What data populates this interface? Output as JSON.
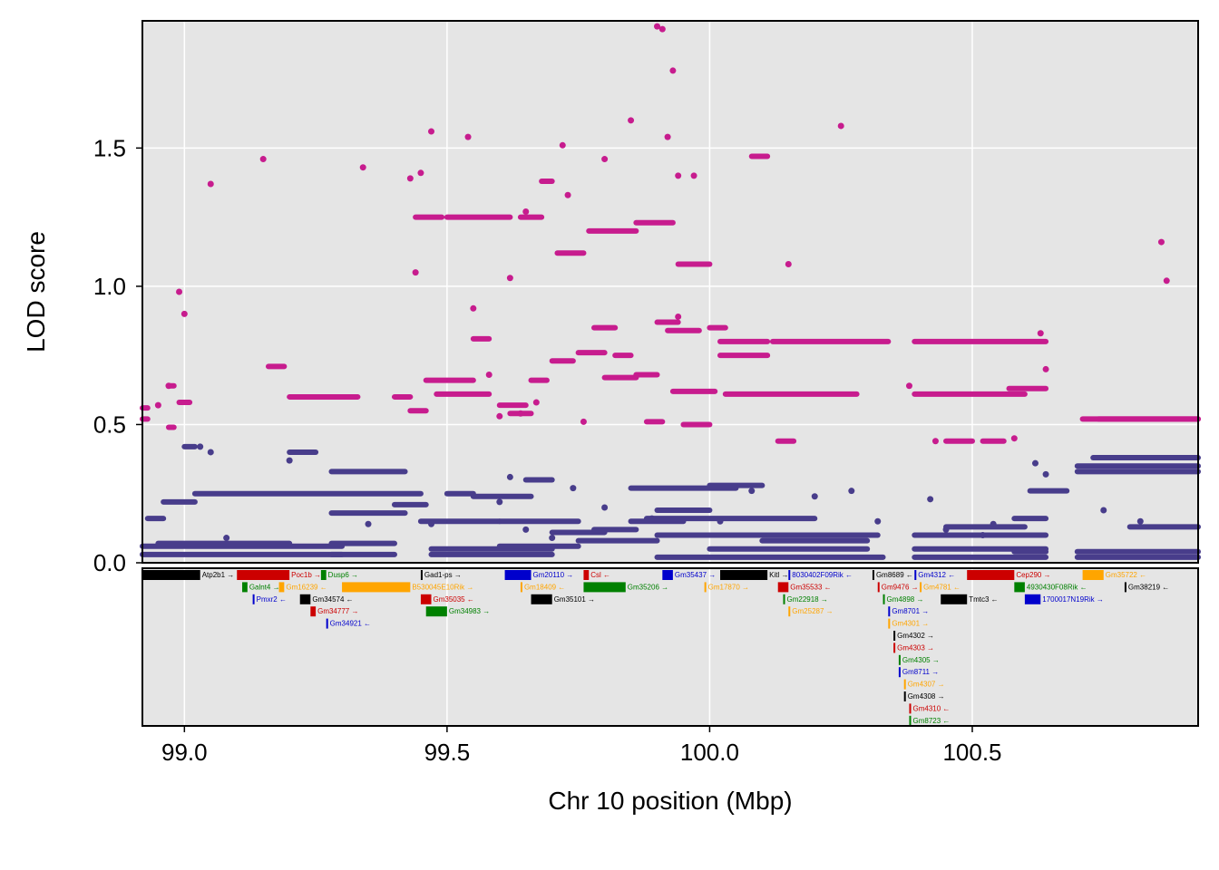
{
  "chart_data": {
    "type": "scatter",
    "xlabel": "Chr 10 position (Mbp)",
    "ylabel": "LOD score",
    "xlim": [
      98.92,
      100.93
    ],
    "ylim": [
      0.0,
      1.96
    ],
    "x_ticks": [
      99.0,
      99.5,
      100.0,
      100.5
    ],
    "x_tick_labels": [
      "99.0",
      "99.5",
      "100.0",
      "100.5"
    ],
    "y_ticks": [
      0.0,
      0.5,
      1.0,
      1.5
    ],
    "y_tick_labels": [
      "0.0",
      "0.5",
      "1.0",
      "1.5"
    ],
    "grid": true,
    "background": "#e5e5e5",
    "series": [
      {
        "color": "#c71c8e",
        "segments": [
          [
            98.92,
            98.93,
            0.56
          ],
          [
            98.92,
            98.93,
            0.52
          ],
          [
            98.97,
            98.98,
            0.64
          ],
          [
            98.97,
            98.98,
            0.49
          ],
          [
            98.99,
            99.01,
            0.58
          ],
          [
            99.16,
            99.19,
            0.71
          ],
          [
            99.2,
            99.33,
            0.6
          ],
          [
            99.4,
            99.43,
            0.6
          ],
          [
            99.43,
            99.46,
            0.55
          ],
          [
            99.44,
            99.49,
            1.25
          ],
          [
            99.46,
            99.55,
            0.66
          ],
          [
            99.48,
            99.58,
            0.61
          ],
          [
            99.5,
            99.62,
            1.25
          ],
          [
            99.55,
            99.58,
            0.81
          ],
          [
            99.6,
            99.65,
            0.57
          ],
          [
            99.62,
            99.66,
            0.54
          ],
          [
            99.64,
            99.68,
            1.25
          ],
          [
            99.66,
            99.69,
            0.66
          ],
          [
            99.68,
            99.7,
            1.38
          ],
          [
            99.7,
            99.74,
            0.73
          ],
          [
            99.71,
            99.76,
            1.12
          ],
          [
            99.75,
            99.8,
            0.76
          ],
          [
            99.77,
            99.86,
            1.2
          ],
          [
            99.78,
            99.82,
            0.85
          ],
          [
            99.8,
            99.86,
            0.67
          ],
          [
            99.82,
            99.85,
            0.75
          ],
          [
            99.86,
            99.9,
            0.68
          ],
          [
            99.86,
            99.93,
            1.23
          ],
          [
            99.88,
            99.91,
            0.51
          ],
          [
            99.9,
            99.94,
            0.87
          ],
          [
            99.92,
            99.98,
            0.84
          ],
          [
            99.93,
            100.01,
            0.62
          ],
          [
            99.94,
            100.0,
            1.08
          ],
          [
            99.95,
            100.0,
            0.5
          ],
          [
            100.0,
            100.03,
            0.85
          ],
          [
            100.02,
            100.11,
            0.8
          ],
          [
            100.02,
            100.11,
            0.75
          ],
          [
            100.03,
            100.28,
            0.61
          ],
          [
            100.12,
            100.34,
            0.8
          ],
          [
            100.39,
            100.64,
            0.8
          ],
          [
            100.39,
            100.6,
            0.61
          ],
          [
            100.57,
            100.64,
            0.63
          ],
          [
            100.71,
            100.93,
            0.52
          ],
          [
            100.74,
            100.93,
            0.52
          ],
          [
            100.08,
            100.11,
            1.47
          ],
          [
            100.13,
            100.16,
            0.44
          ],
          [
            100.45,
            100.5,
            0.44
          ],
          [
            100.52,
            100.56,
            0.44
          ]
        ],
        "points": [
          [
            98.95,
            0.57
          ],
          [
            98.97,
            0.64
          ],
          [
            98.99,
            0.98
          ],
          [
            99.0,
            0.9
          ],
          [
            99.05,
            1.37
          ],
          [
            99.15,
            1.46
          ],
          [
            99.34,
            1.43
          ],
          [
            99.43,
            1.39
          ],
          [
            99.44,
            1.05
          ],
          [
            99.45,
            1.41
          ],
          [
            99.47,
            1.56
          ],
          [
            99.54,
            1.54
          ],
          [
            99.55,
            0.92
          ],
          [
            99.62,
            1.03
          ],
          [
            99.65,
            1.27
          ],
          [
            99.72,
            1.51
          ],
          [
            99.73,
            1.33
          ],
          [
            99.8,
            1.46
          ],
          [
            99.85,
            1.6
          ],
          [
            99.9,
            1.94
          ],
          [
            99.93,
            1.78
          ],
          [
            99.94,
            1.4
          ],
          [
            99.97,
            1.4
          ],
          [
            99.92,
            1.54
          ],
          [
            100.15,
            1.08
          ],
          [
            100.25,
            1.58
          ],
          [
            100.86,
            1.16
          ],
          [
            100.87,
            1.02
          ],
          [
            99.91,
            1.93
          ],
          [
            99.58,
            0.68
          ],
          [
            99.6,
            0.53
          ],
          [
            99.64,
            0.54
          ],
          [
            99.67,
            0.58
          ],
          [
            99.76,
            0.51
          ],
          [
            99.94,
            0.89
          ],
          [
            100.38,
            0.64
          ],
          [
            100.43,
            0.44
          ],
          [
            100.58,
            0.45
          ],
          [
            100.63,
            0.83
          ],
          [
            100.64,
            0.7
          ]
        ]
      },
      {
        "color": "#483d8b",
        "segments": [
          [
            98.92,
            99.3,
            0.06
          ],
          [
            98.92,
            99.3,
            0.03
          ],
          [
            98.93,
            98.96,
            0.16
          ],
          [
            98.96,
            99.02,
            0.22
          ],
          [
            98.95,
            99.2,
            0.07
          ],
          [
            99.0,
            99.02,
            0.42
          ],
          [
            99.02,
            99.45,
            0.25
          ],
          [
            99.2,
            99.25,
            0.4
          ],
          [
            99.28,
            99.42,
            0.33
          ],
          [
            99.28,
            99.42,
            0.18
          ],
          [
            99.28,
            99.4,
            0.07
          ],
          [
            99.28,
            99.4,
            0.03
          ],
          [
            99.4,
            99.46,
            0.21
          ],
          [
            99.45,
            99.6,
            0.15
          ],
          [
            99.47,
            99.7,
            0.05
          ],
          [
            99.47,
            99.7,
            0.03
          ],
          [
            99.5,
            99.55,
            0.25
          ],
          [
            99.55,
            99.66,
            0.24
          ],
          [
            99.6,
            99.75,
            0.15
          ],
          [
            99.6,
            99.75,
            0.06
          ],
          [
            99.65,
            99.7,
            0.3
          ],
          [
            99.7,
            99.8,
            0.11
          ],
          [
            99.75,
            99.9,
            0.08
          ],
          [
            99.78,
            99.86,
            0.12
          ],
          [
            99.85,
            99.95,
            0.15
          ],
          [
            99.85,
            100.05,
            0.27
          ],
          [
            99.9,
            100.0,
            0.19
          ],
          [
            99.88,
            100.2,
            0.16
          ],
          [
            99.9,
            100.32,
            0.1
          ],
          [
            99.9,
            100.33,
            0.02
          ],
          [
            100.0,
            100.3,
            0.05
          ],
          [
            100.1,
            100.3,
            0.08
          ],
          [
            100.0,
            100.1,
            0.28
          ],
          [
            100.39,
            100.64,
            0.1
          ],
          [
            100.39,
            100.64,
            0.05
          ],
          [
            100.39,
            100.64,
            0.02
          ],
          [
            100.45,
            100.6,
            0.13
          ],
          [
            100.58,
            100.64,
            0.16
          ],
          [
            100.58,
            100.64,
            0.04
          ],
          [
            100.61,
            100.68,
            0.26
          ],
          [
            100.7,
            100.93,
            0.35
          ],
          [
            100.7,
            100.93,
            0.33
          ],
          [
            100.73,
            100.93,
            0.38
          ],
          [
            100.7,
            100.93,
            0.04
          ],
          [
            100.7,
            100.93,
            0.02
          ],
          [
            100.8,
            100.93,
            0.13
          ]
        ],
        "points": [
          [
            99.03,
            0.42
          ],
          [
            99.05,
            0.4
          ],
          [
            99.08,
            0.09
          ],
          [
            99.2,
            0.37
          ],
          [
            99.35,
            0.14
          ],
          [
            99.47,
            0.14
          ],
          [
            99.6,
            0.22
          ],
          [
            99.62,
            0.31
          ],
          [
            99.65,
            0.12
          ],
          [
            99.7,
            0.09
          ],
          [
            99.74,
            0.27
          ],
          [
            99.8,
            0.2
          ],
          [
            99.89,
            0.16
          ],
          [
            100.02,
            0.15
          ],
          [
            100.08,
            0.26
          ],
          [
            100.2,
            0.24
          ],
          [
            100.27,
            0.26
          ],
          [
            100.32,
            0.15
          ],
          [
            100.42,
            0.23
          ],
          [
            100.45,
            0.12
          ],
          [
            100.52,
            0.1
          ],
          [
            100.54,
            0.14
          ],
          [
            100.62,
            0.36
          ],
          [
            100.64,
            0.32
          ],
          [
            100.75,
            0.19
          ],
          [
            100.82,
            0.15
          ]
        ]
      }
    ],
    "genes": [
      {
        "label": "Atp2b1",
        "start": 98.92,
        "end": 99.03,
        "row": 0,
        "color": "#000000",
        "dir": "→"
      },
      {
        "label": "Galnt4",
        "start": 99.11,
        "end": 99.12,
        "row": 1,
        "color": "#008000",
        "dir": "→"
      },
      {
        "label": "Pmxr2",
        "start": 99.13,
        "end": 99.13,
        "row": 2,
        "color": "#0000cc",
        "dir": "←"
      },
      {
        "label": "Poc1b",
        "start": 99.1,
        "end": 99.2,
        "row": 0,
        "color": "#cc0000",
        "dir": "→"
      },
      {
        "label": "Gm16239",
        "start": 99.18,
        "end": 99.19,
        "row": 1,
        "color": "#ffa500",
        "dir": "←"
      },
      {
        "label": "Dusp6",
        "start": 99.26,
        "end": 99.27,
        "row": 0,
        "color": "#008000",
        "dir": "→"
      },
      {
        "label": "Gm34574",
        "start": 99.22,
        "end": 99.24,
        "row": 2,
        "color": "#000000",
        "dir": "←"
      },
      {
        "label": "Gm34777",
        "start": 99.24,
        "end": 99.25,
        "row": 3,
        "color": "#cc0000",
        "dir": "→"
      },
      {
        "label": "Gm34921",
        "start": 99.27,
        "end": 99.27,
        "row": 4,
        "color": "#0000cc",
        "dir": "←"
      },
      {
        "label": "B530045E10Rik",
        "start": 99.3,
        "end": 99.43,
        "row": 1,
        "color": "#ffa500",
        "dir": "→"
      },
      {
        "label": "Gad1-ps",
        "start": 99.45,
        "end": 99.45,
        "row": 0,
        "color": "#000000",
        "dir": "→"
      },
      {
        "label": "Gm35035",
        "start": 99.45,
        "end": 99.47,
        "row": 2,
        "color": "#cc0000",
        "dir": "←"
      },
      {
        "label": "Gm34983",
        "start": 99.46,
        "end": 99.5,
        "row": 3,
        "color": "#008000",
        "dir": "→"
      },
      {
        "label": "Gm20110",
        "start": 99.61,
        "end": 99.66,
        "row": 0,
        "color": "#0000cc",
        "dir": "→"
      },
      {
        "label": "Gm18409",
        "start": 99.64,
        "end": 99.64,
        "row": 1,
        "color": "#ffa500",
        "dir": "←"
      },
      {
        "label": "Gm35101",
        "start": 99.66,
        "end": 99.7,
        "row": 2,
        "color": "#000000",
        "dir": "→"
      },
      {
        "label": "Csl",
        "start": 99.76,
        "end": 99.77,
        "row": 0,
        "color": "#cc0000",
        "dir": "←"
      },
      {
        "label": "Gm35206",
        "start": 99.76,
        "end": 99.84,
        "row": 1,
        "color": "#008000",
        "dir": "→"
      },
      {
        "label": "Gm35437",
        "start": 99.91,
        "end": 99.93,
        "row": 0,
        "color": "#0000cc",
        "dir": "→"
      },
      {
        "label": "Gm17870",
        "start": 99.99,
        "end": 99.99,
        "row": 1,
        "color": "#ffa500",
        "dir": "→"
      },
      {
        "label": "Kitl",
        "start": 100.02,
        "end": 100.11,
        "row": 0,
        "color": "#000000",
        "dir": "→"
      },
      {
        "label": "Gm35533",
        "start": 100.13,
        "end": 100.15,
        "row": 1,
        "color": "#cc0000",
        "dir": "←"
      },
      {
        "label": "8030402F09Rik",
        "start": 100.15,
        "end": 100.15,
        "row": 0,
        "color": "#0000cc",
        "dir": "←"
      },
      {
        "label": "Gm22918",
        "start": 100.14,
        "end": 100.14,
        "row": 2,
        "color": "#008000",
        "dir": "→"
      },
      {
        "label": "Gm25287",
        "start": 100.15,
        "end": 100.15,
        "row": 3,
        "color": "#ffa500",
        "dir": "→"
      },
      {
        "label": "Gm8689",
        "start": 100.31,
        "end": 100.31,
        "row": 0,
        "color": "#000000",
        "dir": "←"
      },
      {
        "label": "Gm9476",
        "start": 100.32,
        "end": 100.32,
        "row": 1,
        "color": "#cc0000",
        "dir": "→"
      },
      {
        "label": "Gm4898",
        "start": 100.33,
        "end": 100.33,
        "row": 2,
        "color": "#008000",
        "dir": "→"
      },
      {
        "label": "Gm8701",
        "start": 100.34,
        "end": 100.34,
        "row": 3,
        "color": "#0000cc",
        "dir": "→"
      },
      {
        "label": "Gm4301",
        "start": 100.34,
        "end": 100.34,
        "row": 4,
        "color": "#ffa500",
        "dir": "→"
      },
      {
        "label": "Gm4302",
        "start": 100.35,
        "end": 100.35,
        "row": 5,
        "color": "#000000",
        "dir": "→"
      },
      {
        "label": "Gm4303",
        "start": 100.35,
        "end": 100.35,
        "row": 6,
        "color": "#cc0000",
        "dir": "→"
      },
      {
        "label": "Gm4305",
        "start": 100.36,
        "end": 100.36,
        "row": 7,
        "color": "#008000",
        "dir": "→"
      },
      {
        "label": "Gm8711",
        "start": 100.36,
        "end": 100.36,
        "row": 8,
        "color": "#0000cc",
        "dir": "→"
      },
      {
        "label": "Gm4307",
        "start": 100.37,
        "end": 100.37,
        "row": 9,
        "color": "#ffa500",
        "dir": "→"
      },
      {
        "label": "Gm4308",
        "start": 100.37,
        "end": 100.37,
        "row": 10,
        "color": "#000000",
        "dir": "→"
      },
      {
        "label": "Gm4310",
        "start": 100.38,
        "end": 100.38,
        "row": 11,
        "color": "#cc0000",
        "dir": "←"
      },
      {
        "label": "Gm8723",
        "start": 100.38,
        "end": 100.38,
        "row": 12,
        "color": "#008000",
        "dir": "←"
      },
      {
        "label": "Gm4312",
        "start": 100.39,
        "end": 100.39,
        "row": 0,
        "color": "#0000cc",
        "dir": "←"
      },
      {
        "label": "Gm4781",
        "start": 100.4,
        "end": 100.4,
        "row": 1,
        "color": "#ffa500",
        "dir": "←"
      },
      {
        "label": "Tmtc3",
        "start": 100.44,
        "end": 100.49,
        "row": 2,
        "color": "#000000",
        "dir": "←"
      },
      {
        "label": "Cep290",
        "start": 100.49,
        "end": 100.58,
        "row": 0,
        "color": "#cc0000",
        "dir": "→"
      },
      {
        "label": "4930430F08Rik",
        "start": 100.58,
        "end": 100.6,
        "row": 1,
        "color": "#008000",
        "dir": "←"
      },
      {
        "label": "1700017N19Rik",
        "start": 100.6,
        "end": 100.63,
        "row": 2,
        "color": "#0000cc",
        "dir": "→"
      },
      {
        "label": "Gm35722",
        "start": 100.71,
        "end": 100.75,
        "row": 0,
        "color": "#ffa500",
        "dir": "←"
      },
      {
        "label": "Gm38219",
        "start": 100.79,
        "end": 100.79,
        "row": 1,
        "color": "#000000",
        "dir": "←"
      }
    ]
  }
}
